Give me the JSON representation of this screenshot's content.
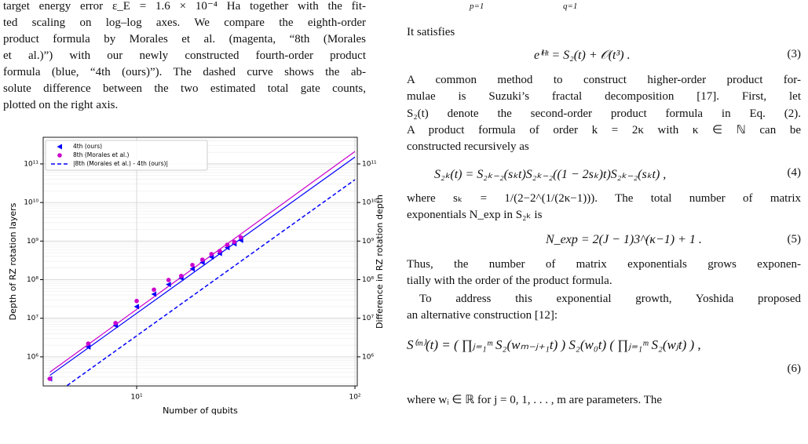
{
  "left_column": {
    "paragraph": [
      "target energy error ε_E = 1.6 × 10⁻⁴ Ha together with the fit-",
      "ted scaling on log–log axes. We compare the eighth-order",
      "product formula by Morales et al. (magenta, “8th (Morales",
      "et al.)”) with our newly constructed fourth-order product",
      "formula (blue, “4th (ours)”). The dashed curve shows the ab-",
      "solute difference between the two estimated total gate counts,",
      "plotted on the right axis."
    ]
  },
  "chart_data": {
    "type": "scatter",
    "x_label": "Number of qubits",
    "y_label": "Depth of RZ rotation layers",
    "y2_label": "Difference in RZ rotation depth",
    "log_x": true,
    "log_y": true,
    "grid": true,
    "legend": "upper left",
    "x": [
      4,
      6,
      8,
      10,
      12,
      14,
      16,
      18,
      20,
      22,
      24,
      26,
      28,
      30
    ],
    "series": [
      {
        "name": "4th (ours)",
        "color": "#0000ff",
        "marker": "triangle-left",
        "values": [
          270000,
          1800000,
          6500000,
          20000000,
          42000000,
          75000000,
          110000000,
          190000000,
          280000000,
          390000000,
          480000000,
          680000000,
          850000000,
          1050000000
        ]
      },
      {
        "name": "8th (Morales et al.)",
        "color": "#cc00cc",
        "marker": "circle",
        "values": [
          270000,
          2200000,
          7500000,
          28000000,
          55000000,
          98000000,
          125000000,
          240000000,
          330000000,
          460000000,
          550000000,
          800000000,
          950000000,
          1250000000
        ]
      },
      {
        "name": "|8th (Morales et al.) - 4th (ours)|",
        "color": "#0000ff",
        "marker": "dashed-line",
        "axis": "y2",
        "x": [
          4.8,
          100
        ],
        "values": [
          180000,
          39000000000
        ]
      }
    ],
    "fits": [
      {
        "color": "#0000ff",
        "x": [
          4,
          100
        ],
        "values": [
          330000,
          150000000000
        ]
      },
      {
        "color": "#cc00cc",
        "x": [
          4,
          100
        ],
        "values": [
          400000,
          210000000000
        ]
      }
    ],
    "xlim": [
      3.73,
      102.5
    ],
    "xticks": [
      {
        "value": 10,
        "label": "10¹"
      },
      {
        "value": 100,
        "label": "10²"
      }
    ],
    "ylim": [
      176000,
      490000000000
    ],
    "yticks": [
      {
        "value": 1000000,
        "label": "10⁶"
      },
      {
        "value": 10000000,
        "label": "10⁷"
      },
      {
        "value": 100000000,
        "label": "10⁸"
      },
      {
        "value": 1000000000,
        "label": "10⁹"
      },
      {
        "value": 10000000000,
        "label": "10¹⁰"
      },
      {
        "value": 100000000000,
        "label": "10¹¹"
      }
    ],
    "y2lim": [
      176000,
      490000000000
    ],
    "y2ticks": [
      {
        "value": 1000000,
        "label": "10⁶"
      },
      {
        "value": 10000000,
        "label": "10⁷"
      },
      {
        "value": 100000000,
        "label": "10⁸"
      },
      {
        "value": 1000000000,
        "label": "10⁹"
      },
      {
        "value": 10000000000,
        "label": "10¹⁰"
      },
      {
        "value": 100000000000,
        "label": "10¹¹"
      }
    ]
  },
  "right_column": {
    "cut_equation": {
      "left_index": "p=1",
      "right_index": "q=1"
    },
    "intro": "It satisfies",
    "eq3": {
      "text": "eⁱᴴᵗ = S₂(t) + 𝒪(t³) .",
      "number": "(3)"
    },
    "paragraph1": [
      "A common method to construct higher-order product for-",
      "mulae is Suzuki’s fractal decomposition [17]. First, let",
      "S₂(t) denote the second-order product formula in Eq. (2).",
      "A product formula of order k = 2κ with κ ∈ ℕ can be",
      "constructed recursively as"
    ],
    "eq4": {
      "text": "S₂ₖ(t) = S₂ₖ₋₂(sₖt)S₂ₖ₋₂((1 − 2sₖ)t)S₂ₖ₋₂(sₖt) ,",
      "number": "(4)"
    },
    "paragraph2": [
      "where sₖ = 1/(2−2^(1/(2κ−1))). The total number of matrix",
      "exponentials N_exp in S₂ₖ is"
    ],
    "eq5": {
      "text": "N_exp = 2(J − 1)3^(κ−1) + 1 .",
      "number": "(5)"
    },
    "paragraph3": [
      "Thus, the number of matrix exponentials grows exponen-",
      "tially with the order of the product formula."
    ],
    "paragraph4": [
      "To address this exponential growth, Yoshida proposed",
      "an alternative construction [12]:"
    ],
    "eq6": {
      "text": "S⁽ᵐ⁾(t) = ( ∏ⱼ₌₁ᵐ S₂(wₘ₋ⱼ₊₁t) ) S₂(w₀t) ( ∏ⱼ₌₁ᵐ S₂(wⱼt) ) ,",
      "number": "(6)"
    },
    "paragraph5": [
      "where wᵢ ∈ ℝ for j = 0, 1, . . . , m are parameters. The"
    ]
  }
}
